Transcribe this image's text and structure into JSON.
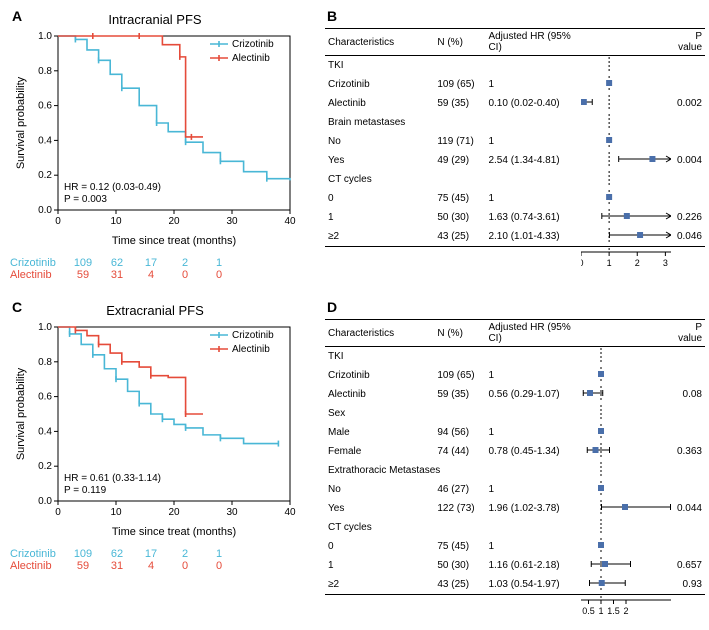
{
  "panelA": {
    "label": "A",
    "title": "Intracranial PFS",
    "ylabel": "Survival probability",
    "xlabel": "Time since treat (months)",
    "xlim": [
      0,
      40
    ],
    "xticks": [
      0,
      10,
      20,
      30,
      40
    ],
    "ylim": [
      0,
      1
    ],
    "yticks": [
      0.0,
      0.2,
      0.4,
      0.6,
      0.8,
      1.0
    ],
    "hr_text": "HR = 0.12 (0.03-0.49)",
    "p_text": "P = 0.003",
    "legend": [
      "Crizotinib",
      "Alectinib"
    ],
    "colors": {
      "criz": "#49b7d6",
      "alec": "#e54b3a"
    },
    "criz_curve": [
      [
        0,
        1.0
      ],
      [
        3,
        0.98
      ],
      [
        5,
        0.92
      ],
      [
        7,
        0.86
      ],
      [
        9,
        0.78
      ],
      [
        11,
        0.7
      ],
      [
        14,
        0.6
      ],
      [
        17,
        0.5
      ],
      [
        19,
        0.45
      ],
      [
        22,
        0.39
      ],
      [
        25,
        0.33
      ],
      [
        28,
        0.28
      ],
      [
        32,
        0.22
      ],
      [
        36,
        0.18
      ],
      [
        40,
        0.17
      ]
    ],
    "alec_curve": [
      [
        0,
        1.0
      ],
      [
        6,
        1.0
      ],
      [
        10,
        1.0
      ],
      [
        14,
        1.0
      ],
      [
        18,
        0.95
      ],
      [
        21,
        0.88
      ],
      [
        22,
        0.42
      ],
      [
        23,
        0.42
      ],
      [
        25,
        0.42
      ]
    ],
    "at_risk": {
      "Crizotinib": [
        109,
        62,
        17,
        2,
        1
      ],
      "Alectinib": [
        59,
        31,
        4,
        0,
        0
      ]
    }
  },
  "panelB": {
    "label": "B",
    "headers": [
      "Characteristics",
      "N (%)",
      "Adjusted HR (95% CI)",
      "",
      "P value"
    ],
    "rows": [
      {
        "label": "TKI",
        "header": true
      },
      {
        "label": "Crizotinib",
        "n": "109 (65)",
        "hr": "1",
        "point": 1,
        "low": 1,
        "high": 1
      },
      {
        "label": "Alectinib",
        "n": "59 (35)",
        "hr": "0.10 (0.02-0.40)",
        "point": 0.1,
        "low": 0.02,
        "high": 0.4,
        "p": "0.002"
      },
      {
        "label": "Brain metastases",
        "header": true
      },
      {
        "label": "No",
        "n": "119 (71)",
        "hr": "1",
        "point": 1,
        "low": 1,
        "high": 1
      },
      {
        "label": "Yes",
        "n": "49 (29)",
        "hr": "2.54 (1.34-4.81)",
        "point": 2.54,
        "low": 1.34,
        "high": 4.81,
        "p": "0.004",
        "arrow_right": true
      },
      {
        "label": "CT cycles",
        "header": true
      },
      {
        "label": "0",
        "n": "75 (45)",
        "hr": "1",
        "point": 1,
        "low": 1,
        "high": 1
      },
      {
        "label": "1",
        "n": "50 (30)",
        "hr": "1.63 (0.74-3.61)",
        "point": 1.63,
        "low": 0.74,
        "high": 3.61,
        "p": "0.226",
        "arrow_right": true
      },
      {
        "label": "≥2",
        "n": "43 (25)",
        "hr": "2.10 (1.01-4.33)",
        "point": 2.1,
        "low": 1.01,
        "high": 4.33,
        "p": "0.046",
        "arrow_right": true,
        "last": true
      }
    ],
    "axis_ticks": [
      0,
      1,
      2,
      3
    ],
    "xlim": [
      0,
      3.2
    ],
    "marker_color": "#4a6faa"
  },
  "panelC": {
    "label": "C",
    "title": "Extracranial PFS",
    "ylabel": "Survival probability",
    "xlabel": "Time since treat (months)",
    "xlim": [
      0,
      40
    ],
    "xticks": [
      0,
      10,
      20,
      30,
      40
    ],
    "ylim": [
      0,
      1
    ],
    "yticks": [
      0.0,
      0.2,
      0.4,
      0.6,
      0.8,
      1.0
    ],
    "hr_text": "HR = 0.61 (0.33-1.14)",
    "p_text": "P = 0.119",
    "legend": [
      "Crizotinib",
      "Alectinib"
    ],
    "colors": {
      "criz": "#49b7d6",
      "alec": "#e54b3a"
    },
    "criz_curve": [
      [
        0,
        1.0
      ],
      [
        2,
        0.96
      ],
      [
        4,
        0.9
      ],
      [
        6,
        0.84
      ],
      [
        8,
        0.76
      ],
      [
        10,
        0.7
      ],
      [
        12,
        0.63
      ],
      [
        14,
        0.56
      ],
      [
        16,
        0.5
      ],
      [
        18,
        0.47
      ],
      [
        20,
        0.44
      ],
      [
        22,
        0.42
      ],
      [
        25,
        0.38
      ],
      [
        28,
        0.36
      ],
      [
        32,
        0.33
      ],
      [
        38,
        0.33
      ]
    ],
    "alec_curve": [
      [
        0,
        1.0
      ],
      [
        3,
        0.98
      ],
      [
        5,
        0.95
      ],
      [
        7,
        0.9
      ],
      [
        9,
        0.85
      ],
      [
        11,
        0.8
      ],
      [
        14,
        0.77
      ],
      [
        16,
        0.72
      ],
      [
        19,
        0.71
      ],
      [
        22,
        0.5
      ],
      [
        25,
        0.5
      ]
    ],
    "at_risk": {
      "Crizotinib": [
        109,
        62,
        17,
        2,
        1
      ],
      "Alectinib": [
        59,
        31,
        4,
        0,
        0
      ]
    }
  },
  "panelD": {
    "label": "D",
    "headers": [
      "Characteristics",
      "N (%)",
      "Adjusted HR (95% CI)",
      "",
      "P value"
    ],
    "rows": [
      {
        "label": "TKI",
        "header": true
      },
      {
        "label": "Crizotinib",
        "n": "109 (65)",
        "hr": "1",
        "point": 1,
        "low": 1,
        "high": 1
      },
      {
        "label": "Alectinib",
        "n": "59 (35)",
        "hr": "0.56 (0.29-1.07)",
        "point": 0.56,
        "low": 0.29,
        "high": 1.07,
        "p": "0.08"
      },
      {
        "label": "Sex",
        "header": true
      },
      {
        "label": "Male",
        "n": "94 (56)",
        "hr": "1",
        "point": 1,
        "low": 1,
        "high": 1
      },
      {
        "label": "Female",
        "n": "74 (44)",
        "hr": "0.78 (0.45-1.34)",
        "point": 0.78,
        "low": 0.45,
        "high": 1.34,
        "p": "0.363"
      },
      {
        "label": "Extrathoracic Metastases",
        "header": true
      },
      {
        "label": "No",
        "n": "46 (27)",
        "hr": "1",
        "point": 1,
        "low": 1,
        "high": 1
      },
      {
        "label": "Yes",
        "n": "122 (73)",
        "hr": "1.96 (1.02-3.78)",
        "point": 1.96,
        "low": 1.02,
        "high": 3.78,
        "p": "0.044",
        "arrow_right": true
      },
      {
        "label": "CT cycles",
        "header": true
      },
      {
        "label": "0",
        "n": "75 (45)",
        "hr": "1",
        "point": 1,
        "low": 1,
        "high": 1
      },
      {
        "label": "1",
        "n": "50 (30)",
        "hr": "1.16 (0.61-2.18)",
        "point": 1.16,
        "low": 0.61,
        "high": 2.18,
        "p": "0.657"
      },
      {
        "label": "≥2",
        "n": "43 (25)",
        "hr": "1.03 (0.54-1.97)",
        "point": 1.03,
        "low": 0.54,
        "high": 1.97,
        "p": "0.93",
        "last": true
      }
    ],
    "axis_ticks": [
      0.5,
      1.0,
      1.5,
      2.0
    ],
    "xlim": [
      0.2,
      3.8
    ],
    "marker_color": "#4a6faa"
  }
}
